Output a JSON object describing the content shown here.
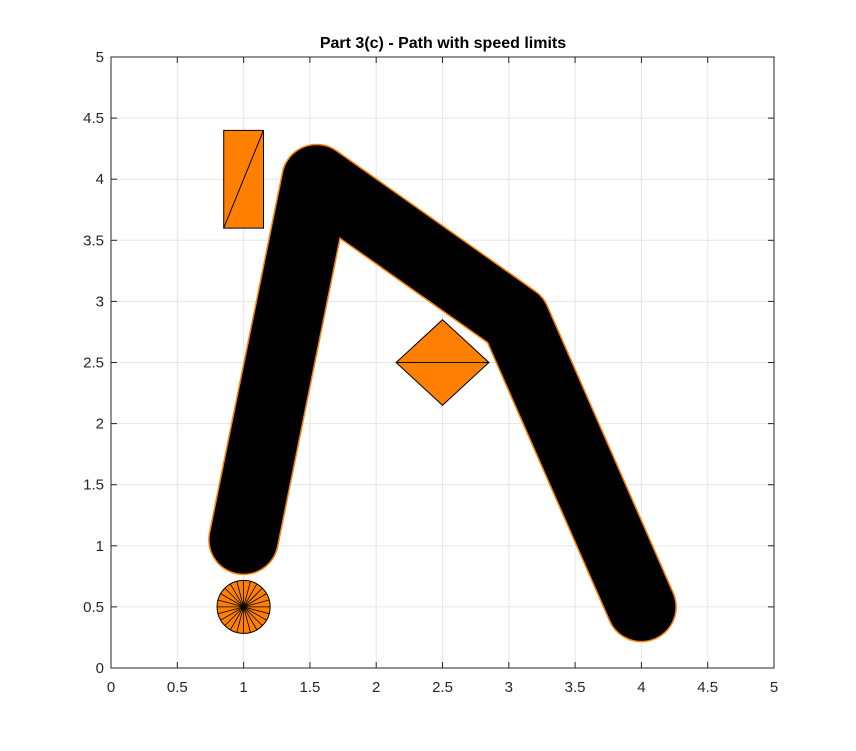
{
  "chart_data": {
    "type": "scatter",
    "title": "Part 3(c) - Path with speed limits",
    "xlabel": "",
    "ylabel": "",
    "xlim": [
      0,
      5
    ],
    "ylim": [
      0,
      5
    ],
    "xticks": [
      0,
      0.5,
      1,
      1.5,
      2,
      2.5,
      3,
      3.5,
      4,
      4.5,
      5
    ],
    "yticks": [
      0,
      0.5,
      1,
      1.5,
      2,
      2.5,
      3,
      3.5,
      4,
      4.5,
      5
    ],
    "xtick_labels": [
      "0",
      "0.5",
      "1",
      "1.5",
      "2",
      "2.5",
      "3",
      "3.5",
      "4",
      "4.5",
      "5"
    ],
    "ytick_labels": [
      "0",
      "0.5",
      "1",
      "1.5",
      "2",
      "2.5",
      "3",
      "3.5",
      "4",
      "4.5",
      "5"
    ],
    "grid": true,
    "colors": {
      "robot_fill": "#ff8000",
      "edge": "#000000",
      "grid": "#e5e5e5",
      "axis": "#262626"
    },
    "robot_start": {
      "center": [
        1,
        0.5
      ],
      "radius": 0.2
    },
    "path_waypoints": [
      [
        1,
        1.05
      ],
      [
        1.55,
        4.0
      ],
      [
        3.05,
        2.85
      ],
      [
        4.0,
        0.5
      ]
    ],
    "swept_robot_radius": 0.26,
    "obstacles": [
      {
        "shape": "rectangle",
        "vertices": [
          [
            0.85,
            3.6
          ],
          [
            1.15,
            3.6
          ],
          [
            1.15,
            4.4
          ],
          [
            0.85,
            4.4
          ]
        ],
        "diagonal": [
          [
            0.85,
            3.6
          ],
          [
            1.15,
            4.4
          ]
        ]
      },
      {
        "shape": "diamond",
        "vertices": [
          [
            2.15,
            2.5
          ],
          [
            2.5,
            2.15
          ],
          [
            2.85,
            2.5
          ],
          [
            2.5,
            2.85
          ]
        ],
        "diagonal": [
          [
            2.15,
            2.5
          ],
          [
            2.85,
            2.5
          ]
        ]
      }
    ]
  }
}
